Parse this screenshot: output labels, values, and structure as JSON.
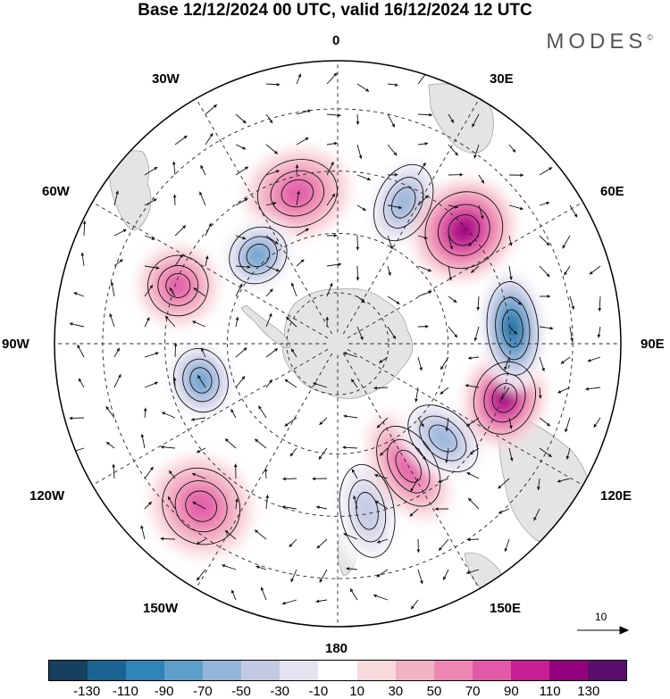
{
  "title": "Base 12/12/2024 00 UTC, valid 16/12/2024 12 UTC",
  "brand": "MODES",
  "brand_mark": "©",
  "longitude_labels": {
    "lon_0": "0",
    "lon_30e": "30E",
    "lon_60e": "60E",
    "lon_90e": "90E",
    "lon_120e": "120E",
    "lon_150e": "150E",
    "lon_180": "180",
    "lon_150w": "150W",
    "lon_120w": "120W",
    "lon_90w": "90W",
    "lon_60w": "60W",
    "lon_30w": "30W"
  },
  "reference_vector": {
    "label": "10"
  },
  "colorbar": {
    "colors": [
      "#15405e",
      "#1b6393",
      "#2f84b8",
      "#5d9fca",
      "#93b5d9",
      "#c3c9e3",
      "#e6e3f1",
      "#ffffff",
      "#f8d9dc",
      "#f3b2c4",
      "#ee86b3",
      "#e05aa7",
      "#c71f93",
      "#93007c",
      "#5a0f6f"
    ],
    "ticks": [
      "-130",
      "-110",
      "-90",
      "-70",
      "-50",
      "-30",
      "-10",
      "10",
      "30",
      "50",
      "70",
      "90",
      "110",
      "130"
    ]
  },
  "anomaly_centers": [
    {
      "lon_deg": 25,
      "lat_frac": 0.55,
      "value": -70,
      "rx": 40,
      "ry": 60
    },
    {
      "lon_deg": -15,
      "lat_frac": 0.55,
      "value": 60,
      "rx": 60,
      "ry": 50
    },
    {
      "lon_deg": -42,
      "lat_frac": 0.42,
      "value": -90,
      "rx": 45,
      "ry": 40
    },
    {
      "lon_deg": -70,
      "lat_frac": 0.6,
      "value": 75,
      "rx": 45,
      "ry": 45
    },
    {
      "lon_deg": -105,
      "lat_frac": 0.5,
      "value": -85,
      "rx": 48,
      "ry": 40
    },
    {
      "lon_deg": -140,
      "lat_frac": 0.75,
      "value": 60,
      "rx": 60,
      "ry": 55
    },
    {
      "lon_deg": 170,
      "lat_frac": 0.6,
      "value": -55,
      "rx": 40,
      "ry": 70
    },
    {
      "lon_deg": 150,
      "lat_frac": 0.5,
      "value": 65,
      "rx": 40,
      "ry": 65
    },
    {
      "lon_deg": 132,
      "lat_frac": 0.5,
      "value": -65,
      "rx": 40,
      "ry": 60
    },
    {
      "lon_deg": 108,
      "lat_frac": 0.62,
      "value": 100,
      "rx": 55,
      "ry": 45
    },
    {
      "lon_deg": 85,
      "lat_frac": 0.62,
      "value": -125,
      "rx": 70,
      "ry": 38
    },
    {
      "lon_deg": 48,
      "lat_frac": 0.6,
      "value": 105,
      "rx": 55,
      "ry": 60
    }
  ]
}
